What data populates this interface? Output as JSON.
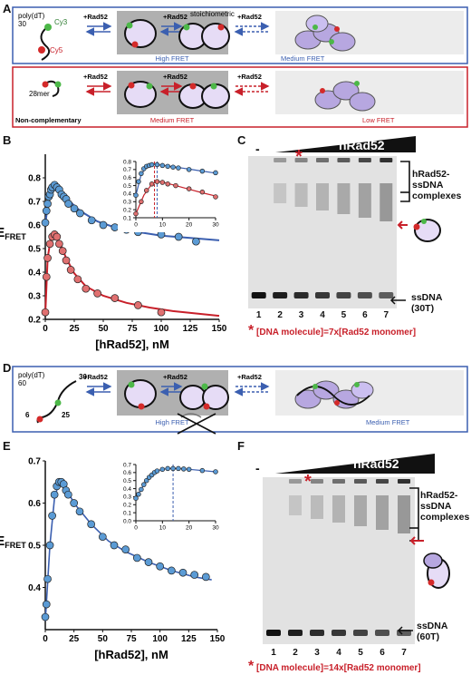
{
  "panels": {
    "A": "A",
    "B": "B",
    "C": "C",
    "D": "D",
    "E": "E",
    "F": "F"
  },
  "colors": {
    "blue": "#3b5fb0",
    "red": "#c8202a",
    "dot_blue": "#5b9bd5",
    "dot_red": "#e07070",
    "gel_bg": "#e4e4e4",
    "lavender": "#b7a7e0"
  },
  "panelA": {
    "top": {
      "substrate_line1": "poly(dT)",
      "substrate_line2": "30",
      "cy3": "Cy3",
      "cy5": "Cy5",
      "arrow1": "+Rad52",
      "arrow2": "+Rad52",
      "arrow3": "+Rad52",
      "stoich": "stoichiometric",
      "fret1": "High FRET",
      "fret2": "Medium FRET"
    },
    "bottom": {
      "substrate": "28mer",
      "note": "Non-complementary",
      "arrow1": "+Rad52",
      "arrow2": "+Rad52",
      "arrow3": "+Rad52",
      "fret1": "Medium FRET",
      "fret2": "Low FRET"
    }
  },
  "panelD": {
    "substrate_line1": "poly(dT)",
    "substrate_line2": "60",
    "n30": "30",
    "n6": "6",
    "n25": "25",
    "arrow1": "+Rad52",
    "arrow2": "+Rad52",
    "arrow3": "+Rad52",
    "fret1": "High FRET",
    "fret2": "Medium FRET"
  },
  "gelC": {
    "minus": "-",
    "title": "hRad52",
    "lanes": [
      "1",
      "2",
      "3",
      "4",
      "5",
      "6",
      "7"
    ],
    "complex_label": [
      "hRad52-",
      "ssDNA",
      "complexes"
    ],
    "ss_label": [
      "ssDNA",
      "(30T)"
    ],
    "star": "*",
    "footnote": "[DNA molecule]=7x[Rad52 monomer]"
  },
  "gelF": {
    "minus": "-",
    "title": "hRad52",
    "lanes": [
      "1",
      "2",
      "3",
      "4",
      "5",
      "6",
      "7"
    ],
    "complex_label": [
      "hRad52-",
      "ssDNA",
      "complexes"
    ],
    "ss_label": [
      "ssDNA",
      "(60T)"
    ],
    "star": "*",
    "footnote": "[DNA molecule]=14x[Rad52 monomer]"
  },
  "chart_data": [
    {
      "id": "B-main",
      "type": "scatter",
      "xlabel": "[hRad52], nM",
      "ylabel": "EFRET",
      "xlim": [
        0,
        150
      ],
      "ylim": [
        0.2,
        0.9
      ],
      "xticks": [
        0,
        25,
        50,
        75,
        100,
        125,
        150
      ],
      "yticks": [
        0.2,
        0.3,
        0.4,
        0.5,
        0.6,
        0.7,
        0.8
      ],
      "series": [
        {
          "color": "blue",
          "points": [
            [
              0,
              0.61
            ],
            [
              1,
              0.66
            ],
            [
              2,
              0.69
            ],
            [
              3,
              0.72
            ],
            [
              4,
              0.73
            ],
            [
              5,
              0.75
            ],
            [
              6,
              0.76
            ],
            [
              8,
              0.77
            ],
            [
              10,
              0.76
            ],
            [
              12,
              0.75
            ],
            [
              14,
              0.73
            ],
            [
              16,
              0.72
            ],
            [
              18,
              0.71
            ],
            [
              20,
              0.69
            ],
            [
              25,
              0.67
            ],
            [
              30,
              0.65
            ],
            [
              40,
              0.62
            ],
            [
              50,
              0.6
            ],
            [
              60,
              0.59
            ],
            [
              70,
              0.58
            ],
            [
              80,
              0.57
            ],
            [
              100,
              0.56
            ],
            [
              115,
              0.55
            ],
            [
              130,
              0.53
            ]
          ],
          "curve": [
            [
              0,
              0.6
            ],
            [
              3,
              0.72
            ],
            [
              6,
              0.765
            ],
            [
              9,
              0.77
            ],
            [
              12,
              0.755
            ],
            [
              20,
              0.705
            ],
            [
              30,
              0.66
            ],
            [
              45,
              0.615
            ],
            [
              60,
              0.59
            ],
            [
              80,
              0.57
            ],
            [
              100,
              0.555
            ],
            [
              125,
              0.545
            ],
            [
              150,
              0.535
            ]
          ]
        },
        {
          "color": "red",
          "points": [
            [
              0,
              0.23
            ],
            [
              1,
              0.38
            ],
            [
              2,
              0.46
            ],
            [
              4,
              0.52
            ],
            [
              6,
              0.55
            ],
            [
              8,
              0.56
            ],
            [
              10,
              0.55
            ],
            [
              12,
              0.52
            ],
            [
              15,
              0.49
            ],
            [
              18,
              0.45
            ],
            [
              22,
              0.41
            ],
            [
              28,
              0.37
            ],
            [
              35,
              0.33
            ],
            [
              45,
              0.31
            ],
            [
              60,
              0.29
            ],
            [
              80,
              0.26
            ],
            [
              100,
              0.23
            ]
          ],
          "curve": [
            [
              0,
              0.22
            ],
            [
              2,
              0.46
            ],
            [
              5,
              0.55
            ],
            [
              8,
              0.565
            ],
            [
              12,
              0.53
            ],
            [
              18,
              0.46
            ],
            [
              25,
              0.395
            ],
            [
              35,
              0.34
            ],
            [
              50,
              0.3
            ],
            [
              70,
              0.27
            ],
            [
              90,
              0.25
            ],
            [
              110,
              0.235
            ],
            [
              130,
              0.225
            ],
            [
              150,
              0.215
            ]
          ]
        }
      ]
    },
    {
      "id": "B-inset",
      "type": "scatter",
      "xlim": [
        0,
        30
      ],
      "ylim": [
        0.1,
        0.8
      ],
      "xticks": [
        0,
        10,
        20,
        30
      ],
      "yticks": [
        0.1,
        0.2,
        0.3,
        0.4,
        0.5,
        0.6,
        0.7,
        0.8
      ],
      "vlines": [
        {
          "x": 7,
          "color": "red"
        },
        {
          "x": 8,
          "color": "blue"
        }
      ],
      "series": [
        {
          "color": "blue",
          "points": [
            [
              0,
              0.38
            ],
            [
              1,
              0.55
            ],
            [
              2,
              0.65
            ],
            [
              3,
              0.71
            ],
            [
              4,
              0.74
            ],
            [
              5,
              0.75
            ],
            [
              6,
              0.76
            ],
            [
              8,
              0.76
            ],
            [
              10,
              0.75
            ],
            [
              12,
              0.74
            ],
            [
              14,
              0.73
            ],
            [
              16,
              0.72
            ],
            [
              20,
              0.7
            ],
            [
              25,
              0.68
            ],
            [
              30,
              0.66
            ]
          ],
          "curve": [
            [
              0,
              0.38
            ],
            [
              2,
              0.64
            ],
            [
              4,
              0.73
            ],
            [
              7,
              0.765
            ],
            [
              10,
              0.755
            ],
            [
              15,
              0.73
            ],
            [
              20,
              0.705
            ],
            [
              25,
              0.68
            ],
            [
              30,
              0.655
            ]
          ]
        },
        {
          "color": "red",
          "points": [
            [
              0,
              0.15
            ],
            [
              2,
              0.3
            ],
            [
              4,
              0.44
            ],
            [
              6,
              0.52
            ],
            [
              8,
              0.55
            ],
            [
              10,
              0.54
            ],
            [
              12,
              0.52
            ],
            [
              15,
              0.5
            ],
            [
              20,
              0.46
            ],
            [
              25,
              0.42
            ],
            [
              30,
              0.36
            ]
          ],
          "curve": [
            [
              0,
              0.15
            ],
            [
              3,
              0.38
            ],
            [
              6,
              0.52
            ],
            [
              8,
              0.55
            ],
            [
              10,
              0.545
            ],
            [
              15,
              0.5
            ],
            [
              20,
              0.455
            ],
            [
              25,
              0.41
            ],
            [
              30,
              0.37
            ]
          ]
        }
      ]
    },
    {
      "id": "E-main",
      "type": "scatter",
      "xlabel": "[hRad52], nM",
      "ylabel": "EFRET",
      "xlim": [
        0,
        150
      ],
      "ylim": [
        0.3,
        0.7
      ],
      "xticks": [
        0,
        25,
        50,
        75,
        100,
        125,
        150
      ],
      "yticks": [
        0.4,
        0.5,
        0.6,
        0.7
      ],
      "series": [
        {
          "color": "blue",
          "points": [
            [
              0,
              0.33
            ],
            [
              1,
              0.36
            ],
            [
              2,
              0.42
            ],
            [
              4,
              0.5
            ],
            [
              6,
              0.57
            ],
            [
              8,
              0.62
            ],
            [
              10,
              0.64
            ],
            [
              12,
              0.65
            ],
            [
              14,
              0.65
            ],
            [
              16,
              0.645
            ],
            [
              18,
              0.63
            ],
            [
              20,
              0.62
            ],
            [
              25,
              0.6
            ],
            [
              30,
              0.58
            ],
            [
              40,
              0.55
            ],
            [
              50,
              0.52
            ],
            [
              60,
              0.5
            ],
            [
              70,
              0.49
            ],
            [
              80,
              0.47
            ],
            [
              90,
              0.46
            ],
            [
              100,
              0.45
            ],
            [
              110,
              0.44
            ],
            [
              120,
              0.435
            ],
            [
              130,
              0.43
            ],
            [
              140,
              0.425
            ]
          ],
          "curve": [
            [
              0,
              0.32
            ],
            [
              4,
              0.5
            ],
            [
              8,
              0.61
            ],
            [
              12,
              0.65
            ],
            [
              16,
              0.645
            ],
            [
              25,
              0.6
            ],
            [
              40,
              0.55
            ],
            [
              55,
              0.51
            ],
            [
              70,
              0.485
            ],
            [
              90,
              0.46
            ],
            [
              110,
              0.44
            ],
            [
              130,
              0.425
            ],
            [
              145,
              0.418
            ]
          ]
        }
      ]
    },
    {
      "id": "E-inset",
      "type": "scatter",
      "xlim": [
        0,
        30
      ],
      "ylim": [
        0,
        0.7
      ],
      "xticks": [
        0,
        10,
        20,
        30
      ],
      "yticks": [
        0,
        0.1,
        0.2,
        0.3,
        0.4,
        0.5,
        0.6,
        0.7
      ],
      "vlines": [
        {
          "x": 14,
          "color": "blue"
        }
      ],
      "series": [
        {
          "color": "blue",
          "points": [
            [
              0,
              0.28
            ],
            [
              1,
              0.33
            ],
            [
              2,
              0.39
            ],
            [
              3,
              0.45
            ],
            [
              4,
              0.5
            ],
            [
              5,
              0.54
            ],
            [
              6,
              0.57
            ],
            [
              7,
              0.6
            ],
            [
              8,
              0.62
            ],
            [
              10,
              0.64
            ],
            [
              12,
              0.65
            ],
            [
              14,
              0.65
            ],
            [
              16,
              0.65
            ],
            [
              18,
              0.645
            ],
            [
              20,
              0.64
            ],
            [
              25,
              0.625
            ],
            [
              30,
              0.61
            ]
          ],
          "curve": [
            [
              0,
              0.28
            ],
            [
              3,
              0.45
            ],
            [
              6,
              0.57
            ],
            [
              9,
              0.63
            ],
            [
              12,
              0.65
            ],
            [
              15,
              0.652
            ],
            [
              20,
              0.64
            ],
            [
              25,
              0.625
            ],
            [
              30,
              0.61
            ]
          ]
        }
      ]
    }
  ]
}
